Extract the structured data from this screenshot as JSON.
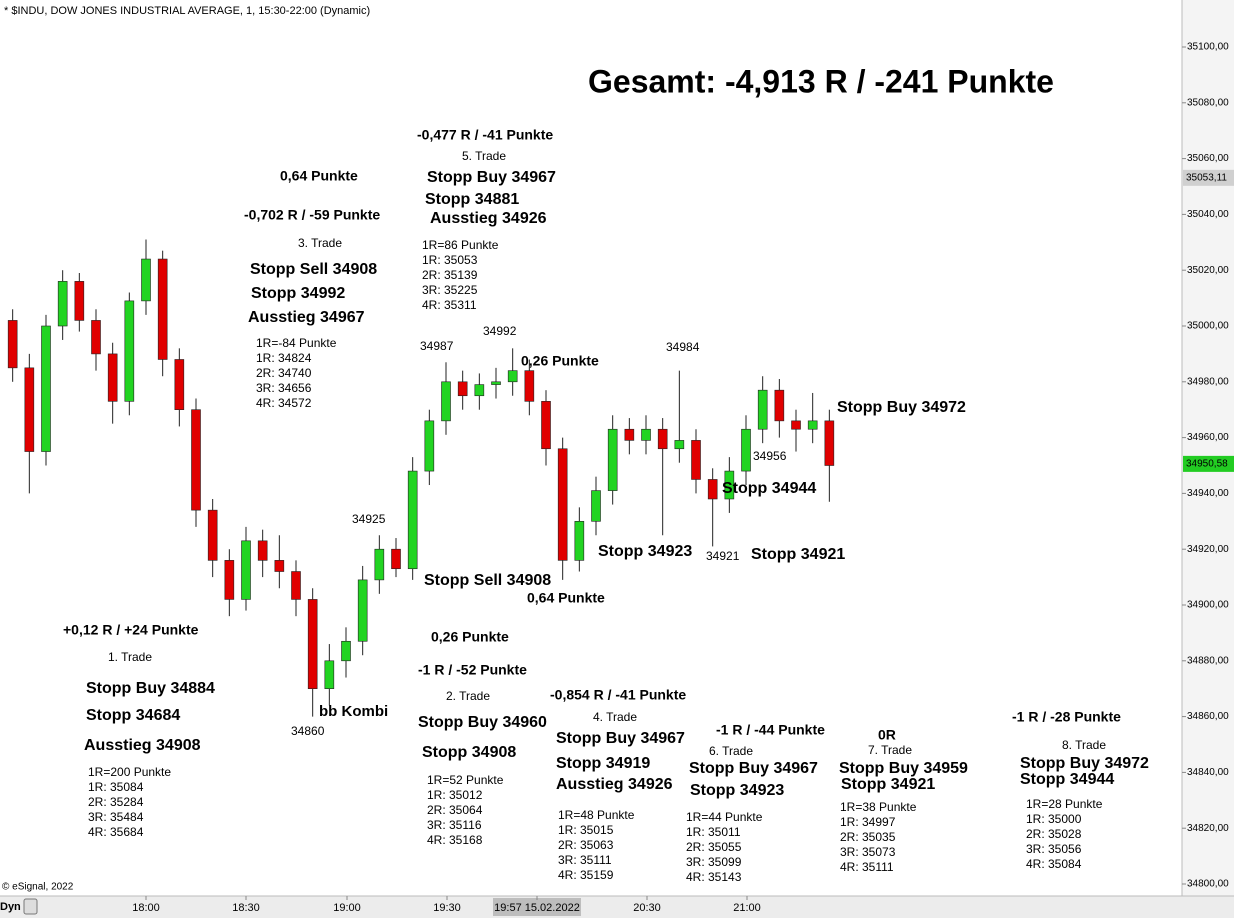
{
  "chart_data": {
    "type": "candlestick",
    "title": "* $INDU, DOW JONES INDUSTRIAL AVERAGE, 1, 15:30-22:00 (Dynamic)",
    "credit": "© eSignal, 2022",
    "mode": "Dyn",
    "up_color": "#22d422",
    "down_color": "#e00000",
    "ylim": [
      34800,
      35100
    ],
    "yticks": [
      {
        "value": 35100,
        "label": "35100,00"
      },
      {
        "value": 35080,
        "label": "35080,00"
      },
      {
        "value": 35060,
        "label": "35060,00"
      },
      {
        "value": 35040,
        "label": "35040,00"
      },
      {
        "value": 35020,
        "label": "35020,00"
      },
      {
        "value": 35000,
        "label": "35000,00"
      },
      {
        "value": 34980,
        "label": "34980,00"
      },
      {
        "value": 34960,
        "label": "34960,00"
      },
      {
        "value": 34940,
        "label": "34940,00"
      },
      {
        "value": 34920,
        "label": "34920,00"
      },
      {
        "value": 34900,
        "label": "34900,00"
      },
      {
        "value": 34880,
        "label": "34880,00"
      },
      {
        "value": 34860,
        "label": "34860,00"
      },
      {
        "value": 34840,
        "label": "34840,00"
      },
      {
        "value": 34820,
        "label": "34820,00"
      },
      {
        "value": 34800,
        "label": "34800,00"
      }
    ],
    "price_tags": [
      {
        "value": 35053.11,
        "label": "35053,11",
        "color": "#d0d0d0"
      },
      {
        "value": 34950.58,
        "label": "34950,58",
        "color": "#22cc22"
      }
    ],
    "x_labels": [
      "18:00",
      "18:30",
      "19:00",
      "19:30",
      "19:57 15.02.2022",
      "20:30",
      "21:00"
    ],
    "candles": [
      [
        35002,
        35006,
        34980,
        34985
      ],
      [
        34985,
        34990,
        34940,
        34955
      ],
      [
        34955,
        35004,
        34950,
        35000
      ],
      [
        35000,
        35020,
        34995,
        35016
      ],
      [
        35016,
        35019,
        34998,
        35002
      ],
      [
        35002,
        35006,
        34984,
        34990
      ],
      [
        34990,
        34994,
        34965,
        34973
      ],
      [
        34973,
        35012,
        34968,
        35009
      ],
      [
        35009,
        35031,
        35004,
        35024
      ],
      [
        35024,
        35027,
        34982,
        34988
      ],
      [
        34988,
        34992,
        34964,
        34970
      ],
      [
        34970,
        34974,
        34928,
        34934
      ],
      [
        34934,
        34938,
        34910,
        34916
      ],
      [
        34916,
        34920,
        34896,
        34902
      ],
      [
        34902,
        34928,
        34898,
        34923
      ],
      [
        34923,
        34927,
        34910,
        34916
      ],
      [
        34916,
        34925,
        34906,
        34912
      ],
      [
        34912,
        34916,
        34896,
        34902
      ],
      [
        34902,
        34906,
        34860,
        34870
      ],
      [
        34870,
        34886,
        34864,
        34880
      ],
      [
        34880,
        34892,
        34874,
        34887
      ],
      [
        34887,
        34914,
        34882,
        34909
      ],
      [
        34909,
        34925,
        34904,
        34920
      ],
      [
        34920,
        34924,
        34910,
        34913
      ],
      [
        34913,
        34953,
        34909,
        34948
      ],
      [
        34948,
        34970,
        34943,
        34966
      ],
      [
        34966,
        34987,
        34961,
        34980
      ],
      [
        34980,
        34984,
        34970,
        34975
      ],
      [
        34975,
        34983,
        34970,
        34979
      ],
      [
        34979,
        34985,
        34974,
        34980
      ],
      [
        34980,
        34992,
        34975,
        34984
      ],
      [
        34984,
        34988,
        34968,
        34973
      ],
      [
        34973,
        34977,
        34950,
        34956
      ],
      [
        34956,
        34960,
        34909,
        34916
      ],
      [
        34916,
        34935,
        34912,
        34930
      ],
      [
        34930,
        34946,
        34925,
        34941
      ],
      [
        34941,
        34968,
        34936,
        34963
      ],
      [
        34963,
        34967,
        34954,
        34959
      ],
      [
        34959,
        34968,
        34954,
        34963
      ],
      [
        34963,
        34967,
        34925,
        34956
      ],
      [
        34956,
        34984,
        34951,
        34959
      ],
      [
        34959,
        34963,
        34940,
        34945
      ],
      [
        34945,
        34949,
        34921,
        34938
      ],
      [
        34938,
        34953,
        34933,
        34948
      ],
      [
        34948,
        34968,
        34943,
        34963
      ],
      [
        34963,
        34982,
        34958,
        34977
      ],
      [
        34977,
        34981,
        34960,
        34966
      ],
      [
        34966,
        34970,
        34955,
        34963
      ],
      [
        34963,
        34976,
        34958,
        34966
      ],
      [
        34966,
        34970,
        34937,
        34950
      ]
    ],
    "annotations": [
      {
        "text": "Gesamt: -4,913 R / -241 Punkte",
        "color": "#000000"
      },
      {
        "text": "0,64 Punkte",
        "color": "#000000"
      },
      {
        "text": "-0,702 R / -59 Punkte",
        "color": "#000000"
      },
      {
        "text": "3. Trade",
        "color": "#000000"
      },
      {
        "text": "Stopp Sell 34908",
        "color": "#e60000"
      },
      {
        "text": "Stopp 34992",
        "color": "#e60000"
      },
      {
        "text": "Ausstieg 34967",
        "color": "#e60000"
      },
      {
        "text": "1R=-84 Punkte",
        "color": "#000000"
      },
      {
        "text": "1R: 34824",
        "color": "#000000"
      },
      {
        "text": "2R: 34740",
        "color": "#000000"
      },
      {
        "text": "3R: 34656",
        "color": "#000000"
      },
      {
        "text": "4R: 34572",
        "color": "#000000"
      },
      {
        "text": "-0,477 R / -41 Punkte",
        "color": "#000000"
      },
      {
        "text": "5. Trade",
        "color": "#000000"
      },
      {
        "text": "Stopp Buy 34967",
        "color": "#1a9a1a"
      },
      {
        "text": "Stopp 34881",
        "color": "#1a9a1a"
      },
      {
        "text": "Ausstieg 34926",
        "color": "#1a9a1a"
      },
      {
        "text": "1R=86 Punkte",
        "color": "#000000"
      },
      {
        "text": "1R: 35053",
        "color": "#000000"
      },
      {
        "text": "2R: 35139",
        "color": "#000000"
      },
      {
        "text": "3R: 35225",
        "color": "#000000"
      },
      {
        "text": "4R: 35311",
        "color": "#000000"
      },
      {
        "text": "34987",
        "color": "#000000"
      },
      {
        "text": "34992",
        "color": "#000000"
      },
      {
        "text": "0,26 Punkte",
        "color": "#000000"
      },
      {
        "text": "34984",
        "color": "#000000"
      },
      {
        "text": "Stopp Buy 34972",
        "color": "#1a9a1a"
      },
      {
        "text": "34956",
        "color": "#000000"
      },
      {
        "text": "Stopp 34944",
        "color": "#1a9a1a"
      },
      {
        "text": "34925",
        "color": "#000000"
      },
      {
        "text": "Stopp 34923",
        "color": "#1a9a1a"
      },
      {
        "text": "34921",
        "color": "#000000"
      },
      {
        "text": "Stopp 34921",
        "color": "#0000dd"
      },
      {
        "text": "Stopp Sell 34908",
        "color": "#e60000"
      },
      {
        "text": "0,64 Punkte",
        "color": "#000000"
      },
      {
        "text": "+0,12 R / +24 Punkte",
        "color": "#000000"
      },
      {
        "text": "0,26 Punkte",
        "color": "#000000"
      },
      {
        "text": "1. Trade",
        "color": "#000000"
      },
      {
        "text": "-1 R / -52 Punkte",
        "color": "#000000"
      },
      {
        "text": "Stopp Buy 34884",
        "color": "#1a9a1a"
      },
      {
        "text": "2. Trade",
        "color": "#000000"
      },
      {
        "text": "-0,854 R / -41 Punkte",
        "color": "#000000"
      },
      {
        "text": "bb Kombi",
        "color": "#8b3a0e"
      },
      {
        "text": "Stopp 34684",
        "color": "#1a9a1a"
      },
      {
        "text": "4. Trade",
        "color": "#000000"
      },
      {
        "text": "Stopp Buy 34960",
        "color": "#0000dd"
      },
      {
        "text": "-1 R / -44 Punkte",
        "color": "#000000"
      },
      {
        "text": "0R",
        "color": "#000000"
      },
      {
        "text": "-1 R / -28 Punkte",
        "color": "#000000"
      },
      {
        "text": "34860",
        "color": "#000000"
      },
      {
        "text": "Stopp Buy 34967",
        "color": "#e619e6"
      },
      {
        "text": "Ausstieg 34908",
        "color": "#1a9a1a"
      },
      {
        "text": "8. Trade",
        "color": "#000000"
      },
      {
        "text": "6. Trade",
        "color": "#000000"
      },
      {
        "text": "7. Trade",
        "color": "#000000"
      },
      {
        "text": "Stopp 34908",
        "color": "#0000dd"
      },
      {
        "text": "Stopp 34919",
        "color": "#e619e6"
      },
      {
        "text": "Stopp Buy 34967",
        "color": "#1a9a1a"
      },
      {
        "text": "Stopp Buy 34959",
        "color": "#0000dd"
      },
      {
        "text": "Stopp Buy 34972",
        "color": "#1a9a1a"
      },
      {
        "text": "Ausstieg 34926",
        "color": "#e619e6"
      },
      {
        "text": "Stopp 34923",
        "color": "#1a9a1a"
      },
      {
        "text": "Stopp 34921",
        "color": "#0000dd"
      },
      {
        "text": "Stopp 34944",
        "color": "#1a9a1a"
      }
    ],
    "trade_notes": [
      [
        "1R=200 Punkte",
        "1R: 35084",
        "2R: 35284",
        "3R: 35484",
        "4R: 35684"
      ],
      [
        "1R=52 Punkte",
        "1R: 35012",
        "2R: 35064",
        "3R: 35116",
        "4R: 35168"
      ],
      [
        "1R=48 Punkte",
        "1R: 35015",
        "2R: 35063",
        "3R: 35111",
        "4R: 35159"
      ],
      [
        "1R=44 Punkte",
        "1R: 35011",
        "2R: 35055",
        "3R: 35099",
        "4R: 35143"
      ],
      [
        "1R=38 Punkte",
        "1R: 34997",
        "2R: 35035",
        "3R: 35073",
        "4R: 35111"
      ],
      [
        "1R=28 Punkte",
        "1R: 35000",
        "2R: 35028",
        "3R: 35056",
        "4R: 35084"
      ]
    ]
  }
}
